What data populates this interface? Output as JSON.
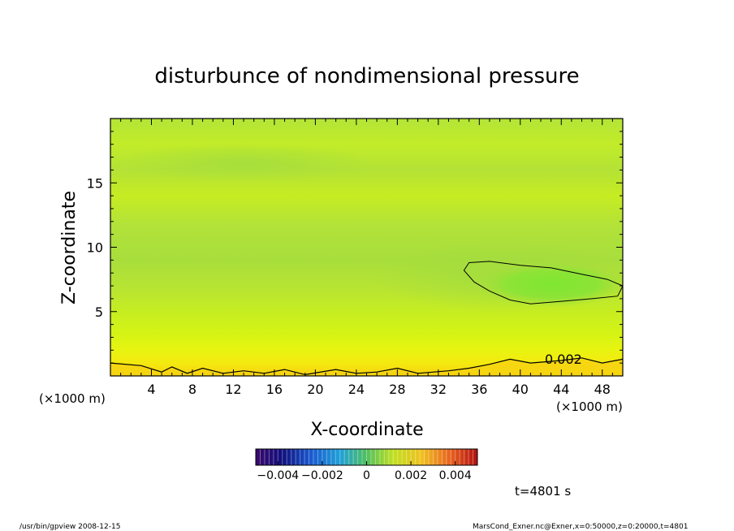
{
  "chart_data": {
    "type": "heatmap",
    "title": "disturbunce of nondimensional pressure",
    "xlabel": "X-coordinate",
    "ylabel": "Z-coordinate",
    "x_unit_left": "(×1000 m)",
    "x_unit_right": "(×1000 m)",
    "xlim": [
      0,
      50
    ],
    "ylim": [
      0,
      20
    ],
    "x_ticks": [
      4,
      8,
      12,
      16,
      20,
      24,
      28,
      32,
      36,
      40,
      44,
      48
    ],
    "y_ticks": [
      5,
      10,
      15
    ],
    "colorbar": {
      "range": [
        -0.005,
        0.005
      ],
      "tick_labels": [
        "−0.004",
        "−0.002",
        "0",
        "0.002",
        "0.004"
      ],
      "tick_values": [
        -0.004,
        -0.002,
        0,
        0.002,
        0.004
      ]
    },
    "contour": {
      "label": "0.002",
      "level": 0.002,
      "lower_contour": [
        [
          0,
          1.0
        ],
        [
          3,
          0.8
        ],
        [
          5,
          0.3
        ],
        [
          6,
          0.7
        ],
        [
          7.5,
          0.2
        ],
        [
          9,
          0.6
        ],
        [
          11,
          0.2
        ],
        [
          13,
          0.4
        ],
        [
          15,
          0.2
        ],
        [
          17,
          0.5
        ],
        [
          19,
          0.1
        ],
        [
          22,
          0.5
        ],
        [
          24,
          0.2
        ],
        [
          26,
          0.3
        ],
        [
          28,
          0.6
        ],
        [
          30,
          0.2
        ],
        [
          33,
          0.4
        ],
        [
          35,
          0.6
        ],
        [
          37,
          0.9
        ],
        [
          39,
          1.3
        ],
        [
          41,
          1.0
        ],
        [
          44,
          1.2
        ],
        [
          46,
          1.4
        ],
        [
          48,
          1.0
        ],
        [
          50,
          1.3
        ]
      ],
      "closed_contour": [
        [
          34.5,
          8.2
        ],
        [
          35,
          8.8
        ],
        [
          37,
          8.9
        ],
        [
          40,
          8.6
        ],
        [
          43,
          8.4
        ],
        [
          46,
          7.9
        ],
        [
          48.5,
          7.5
        ],
        [
          50,
          7.0
        ],
        [
          49.5,
          6.2
        ],
        [
          47,
          6.0
        ],
        [
          44,
          5.8
        ],
        [
          41,
          5.6
        ],
        [
          39,
          5.9
        ],
        [
          37,
          6.6
        ],
        [
          35.5,
          7.3
        ],
        [
          34.5,
          8.2
        ]
      ]
    },
    "time_label": "t=4801 s",
    "footer_left": "/usr/bin/gpview   2008-12-15",
    "footer_right": "MarsCond_Exner.nc@Exner,x=0:50000,z=0:20000,t=4801"
  }
}
